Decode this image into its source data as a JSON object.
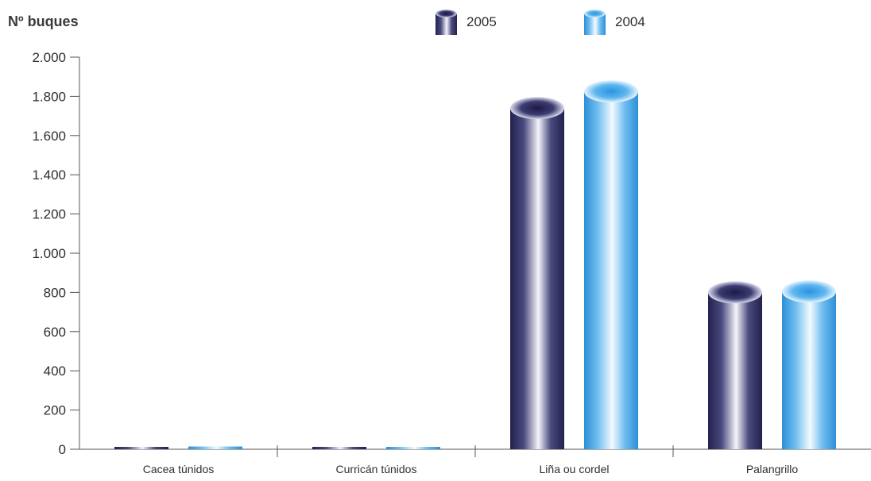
{
  "chart_data": {
    "type": "bar",
    "ylabel": "Nº buques",
    "xlabel": "",
    "categories": [
      "Cacea túnidos",
      "Curricán túnidos",
      "Liña ou cordel",
      "Palangrillo"
    ],
    "series": [
      {
        "name": "2005",
        "values": [
          8,
          6,
          1740,
          800
        ],
        "color": "#2b2a5e"
      },
      {
        "name": "2004",
        "values": [
          10,
          6,
          1825,
          805
        ],
        "color": "#3aa6e8"
      }
    ],
    "ylim": [
      0,
      2000
    ],
    "yticks": [
      0,
      200,
      400,
      600,
      800,
      1000,
      1200,
      1400,
      1600,
      1800,
      2000
    ],
    "ytick_labels": [
      "0",
      "200",
      "400",
      "600",
      "800",
      "1.000",
      "1.200",
      "1.400",
      "1.600",
      "1.800",
      "2.000"
    ],
    "bar_style": "cylinder",
    "grid": false,
    "legend_position": "top"
  }
}
